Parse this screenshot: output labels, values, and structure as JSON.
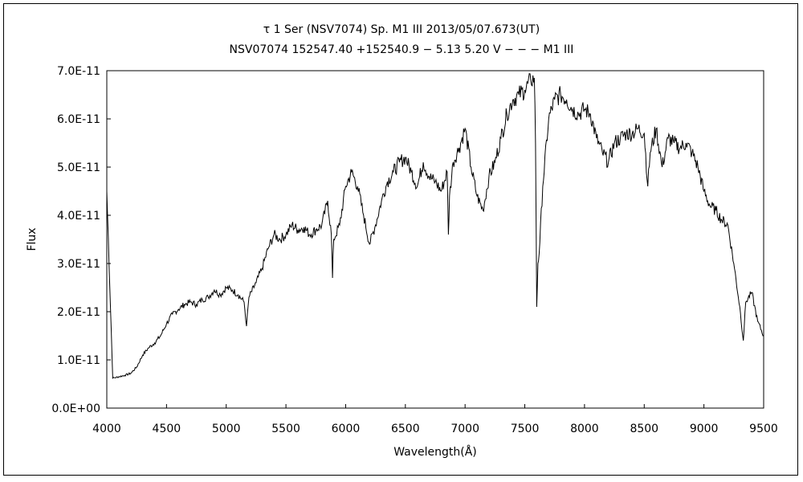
{
  "chart_data": {
    "type": "line",
    "title": "τ 1 Ser (NSV7074)    Sp. M1 III    2013/05/07.673(UT)",
    "subtitle": "NSV07074 152547.40 +152540.9 − 5.13 5.20 V − − − M1 III",
    "xlabel": "Wavelength(Å)",
    "ylabel": "Flux",
    "xlim": [
      4000,
      9500
    ],
    "ylim": [
      0,
      7e-11
    ],
    "xticks": [
      4000,
      4500,
      5000,
      5500,
      6000,
      6500,
      7000,
      7500,
      8000,
      8500,
      9000,
      9500
    ],
    "xtick_labels": [
      "4000",
      "4500",
      "5000",
      "5500",
      "6000",
      "6500",
      "7000",
      "7500",
      "8000",
      "8500",
      "9000",
      "9500"
    ],
    "yticks": [
      0,
      1e-11,
      2e-11,
      3e-11,
      4e-11,
      5e-11,
      6e-11,
      7e-11
    ],
    "ytick_labels": [
      "0.0E+00",
      "1.0E-11",
      "2.0E-11",
      "3.0E-11",
      "4.0E-11",
      "5.0E-11",
      "6.0E-11",
      "7.0E-11"
    ],
    "grid": false,
    "legend": "none",
    "series": [
      {
        "color": "#000000",
        "x": [
          4000,
          4050,
          4100,
          4150,
          4200,
          4250,
          4300,
          4350,
          4400,
          4450,
          4500,
          4550,
          4600,
          4650,
          4700,
          4750,
          4800,
          4850,
          4900,
          4950,
          5000,
          5050,
          5100,
          5150,
          5170,
          5190,
          5250,
          5300,
          5350,
          5400,
          5450,
          5500,
          5550,
          5600,
          5650,
          5700,
          5750,
          5800,
          5850,
          5880,
          5890,
          5900,
          5950,
          6000,
          6050,
          6100,
          6150,
          6200,
          6250,
          6300,
          6350,
          6400,
          6450,
          6500,
          6550,
          6600,
          6650,
          6700,
          6750,
          6800,
          6850,
          6860,
          6870,
          6900,
          6950,
          7000,
          7050,
          7100,
          7150,
          7200,
          7250,
          7300,
          7350,
          7400,
          7450,
          7500,
          7550,
          7580,
          7590,
          7600,
          7610,
          7620,
          7650,
          7700,
          7750,
          7800,
          7850,
          7900,
          7950,
          8000,
          8050,
          8100,
          8150,
          8200,
          8250,
          8300,
          8350,
          8400,
          8450,
          8500,
          8530,
          8550,
          8600,
          8650,
          8700,
          8750,
          8800,
          8850,
          8900,
          8950,
          9000,
          9050,
          9100,
          9150,
          9200,
          9250,
          9300,
          9330,
          9350,
          9400,
          9450,
          9500
        ],
        "y": [
          4.5e-11,
          6.2e-12,
          6.5e-12,
          6.8e-12,
          7.2e-12,
          8.5e-12,
          1.1e-11,
          1.25e-11,
          1.35e-11,
          1.5e-11,
          1.75e-11,
          1.95e-11,
          2.05e-11,
          2.15e-11,
          2.2e-11,
          2.15e-11,
          2.25e-11,
          2.3e-11,
          2.45e-11,
          2.35e-11,
          2.5e-11,
          2.45e-11,
          2.35e-11,
          2.2e-11,
          1.7e-11,
          2.3e-11,
          2.6e-11,
          2.9e-11,
          3.3e-11,
          3.6e-11,
          3.5e-11,
          3.6e-11,
          3.8e-11,
          3.7e-11,
          3.75e-11,
          3.6e-11,
          3.7e-11,
          3.8e-11,
          4.3e-11,
          3.6e-11,
          2.7e-11,
          3.5e-11,
          3.8e-11,
          4.6e-11,
          4.9e-11,
          4.6e-11,
          4e-11,
          3.4e-11,
          3.8e-11,
          4.3e-11,
          4.7e-11,
          4.9e-11,
          5.1e-11,
          5.2e-11,
          4.9e-11,
          4.6e-11,
          5.1e-11,
          4.8e-11,
          4.7e-11,
          4.5e-11,
          4.9e-11,
          3.6e-11,
          4.4e-11,
          5.1e-11,
          5.4e-11,
          5.8e-11,
          5e-11,
          4.4e-11,
          4.1e-11,
          4.8e-11,
          5.1e-11,
          5.6e-11,
          6.1e-11,
          6.4e-11,
          6.5e-11,
          6.6e-11,
          6.8e-11,
          6.85e-11,
          5.5e-11,
          2.1e-11,
          3e-11,
          3.2e-11,
          4.6e-11,
          6e-11,
          6.4e-11,
          6.5e-11,
          6.4e-11,
          6.2e-11,
          6.1e-11,
          6.2e-11,
          6.1e-11,
          5.6e-11,
          5.3e-11,
          5.1e-11,
          5.5e-11,
          5.6e-11,
          5.7e-11,
          5.7e-11,
          5.8e-11,
          5.7e-11,
          4.6e-11,
          5.3e-11,
          5.8e-11,
          5e-11,
          5.6e-11,
          5.5e-11,
          5.4e-11,
          5.5e-11,
          5.3e-11,
          5e-11,
          4.5e-11,
          4.2e-11,
          4.1e-11,
          3.9e-11,
          3.8e-11,
          3e-11,
          2.1e-11,
          1.4e-11,
          2.2e-11,
          2.4e-11,
          1.8e-11,
          1.5e-11
        ]
      }
    ]
  }
}
